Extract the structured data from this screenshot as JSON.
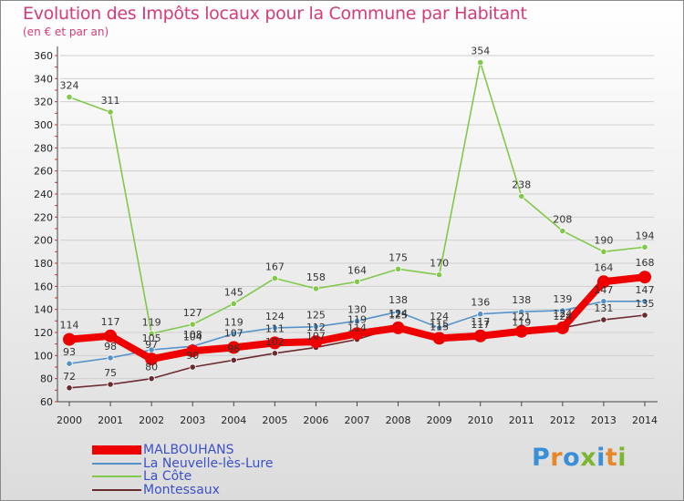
{
  "title": "Evolution des Impôts locaux pour la Commune par Habitant",
  "subtitle": "(en € et par an)",
  "brand": {
    "text": "Proxiti",
    "colors": [
      "#3a8fd6",
      "#e8872a",
      "#3a8fd6",
      "#7ab62f",
      "#3a8fd6",
      "#e8872a",
      "#7ab62f"
    ]
  },
  "chart_data": {
    "type": "line",
    "title": "Evolution des Impôts locaux pour la Commune par Habitant",
    "subtitle": "(en € et par an)",
    "x": [
      "2000",
      "2001",
      "2002",
      "2003",
      "2004",
      "2005",
      "2006",
      "2007",
      "2008",
      "2009",
      "2010",
      "2011",
      "2012",
      "2013",
      "2014"
    ],
    "y_ticks": [
      "60",
      "80",
      "100",
      "120",
      "140",
      "160",
      "180",
      "200",
      "220",
      "240",
      "260",
      "280",
      "300",
      "320",
      "340",
      "360"
    ],
    "ylim": [
      60,
      360
    ],
    "grid": "horizontal",
    "legend": "bottom-left",
    "series": [
      {
        "name": "La Côte",
        "color": "#82c84a",
        "values": [
          324,
          311,
          119,
          127,
          145,
          167,
          158,
          164,
          175,
          170,
          354,
          238,
          208,
          190,
          194
        ],
        "labels": [
          "324",
          "311",
          "119",
          "127",
          "145",
          "167",
          "158",
          "164",
          "175",
          "170",
          "354",
          "238",
          "208",
          "190",
          "194"
        ]
      },
      {
        "name": "La Neuvelle-lès-Lure",
        "color": "#5592c9",
        "values": [
          93,
          98,
          105,
          108,
          119,
          124,
          125,
          130,
          138,
          124,
          136,
          138,
          139,
          147,
          147
        ],
        "labels": [
          "93",
          "98",
          "105",
          "108",
          "119",
          "124",
          "125",
          "130",
          "138",
          "124",
          "136",
          "138",
          "139",
          "147",
          "147"
        ]
      },
      {
        "name": "Montessaux",
        "color": "#6b2a30",
        "values": [
          72,
          75,
          80,
          90,
          96,
          102,
          107,
          114,
          125,
          115,
          117,
          119,
          124,
          131,
          135
        ],
        "labels": [
          "72",
          "75",
          "80",
          "90",
          "96",
          "102",
          "107",
          "114",
          "125",
          "115",
          "117",
          "119",
          "124",
          "131",
          "135"
        ]
      },
      {
        "name": "MALBOUHANS",
        "color": "#ee0000",
        "values": [
          114,
          117,
          97,
          104,
          107,
          111,
          112,
          119,
          124,
          115,
          117,
          121,
          124,
          164,
          168
        ],
        "labels": [
          "114",
          "117",
          "97",
          "104",
          "107",
          "111",
          "112",
          "119",
          "124",
          "115",
          "117",
          "121",
          "124",
          "164",
          "168"
        ]
      }
    ]
  },
  "legend_items": [
    {
      "name": "MALBOUHANS",
      "color": "#ee0000"
    },
    {
      "name": "La Neuvelle-lès-Lure",
      "color": "#5592c9"
    },
    {
      "name": "La Côte",
      "color": "#82c84a"
    },
    {
      "name": "Montessaux",
      "color": "#6b2a30"
    }
  ]
}
